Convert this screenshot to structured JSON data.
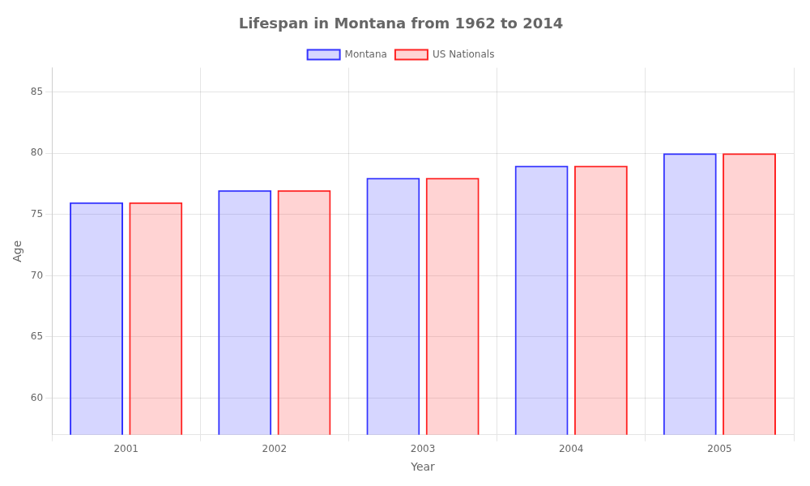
{
  "chart_data": {
    "type": "bar",
    "title": "Lifespan in Montana from 1962 to 2014",
    "x_label": "Year",
    "y_label": "Age",
    "categories": [
      "2001",
      "2002",
      "2003",
      "2004",
      "2005"
    ],
    "series": [
      {
        "name": "Montana",
        "color": "#3333ff",
        "values": [
          76,
          77,
          78,
          79,
          80
        ]
      },
      {
        "name": "US Nationals",
        "color": "#ff2222",
        "values": [
          76,
          77,
          78,
          79,
          80
        ]
      }
    ],
    "ylim": [
      57,
      87
    ],
    "yticks": [
      60,
      65,
      70,
      75,
      80,
      85
    ],
    "grid": true,
    "legend": "top"
  }
}
